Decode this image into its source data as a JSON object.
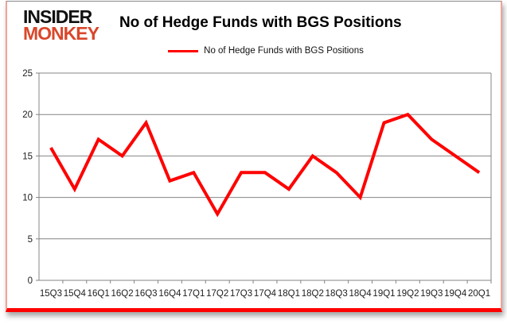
{
  "brand": {
    "line1": "INSIDER",
    "line2": "MONKEY"
  },
  "header": {
    "title": "No of Hedge Funds with BGS Positions"
  },
  "legend": {
    "label": "No of Hedge Funds with BGS Positions"
  },
  "colors": {
    "line": "#ff0000",
    "brand_black": "#111111",
    "brand_red": "#d9472b",
    "grid": "#848484",
    "text": "#1d1d1d",
    "bottom_bar": "#fe0000"
  },
  "chart_data": {
    "type": "line",
    "title": "No of Hedge Funds with BGS Positions",
    "categories": [
      "15Q3",
      "15Q4",
      "16Q1",
      "16Q2",
      "16Q3",
      "16Q4",
      "17Q1",
      "17Q2",
      "17Q3",
      "17Q4",
      "18Q1",
      "18Q2",
      "18Q3",
      "18Q4",
      "19Q1",
      "19Q2",
      "19Q3",
      "19Q4",
      "20Q1"
    ],
    "series": [
      {
        "name": "No of Hedge Funds with BGS Positions",
        "values": [
          16,
          11,
          17,
          15,
          19,
          12,
          13,
          8,
          13,
          13,
          11,
          15,
          13,
          10,
          19,
          20,
          17,
          15,
          13
        ]
      }
    ],
    "xlabel": "",
    "ylabel": "",
    "ylim": [
      0,
      25
    ],
    "ytick_step": 5,
    "grid": true,
    "legend_position": "top"
  }
}
